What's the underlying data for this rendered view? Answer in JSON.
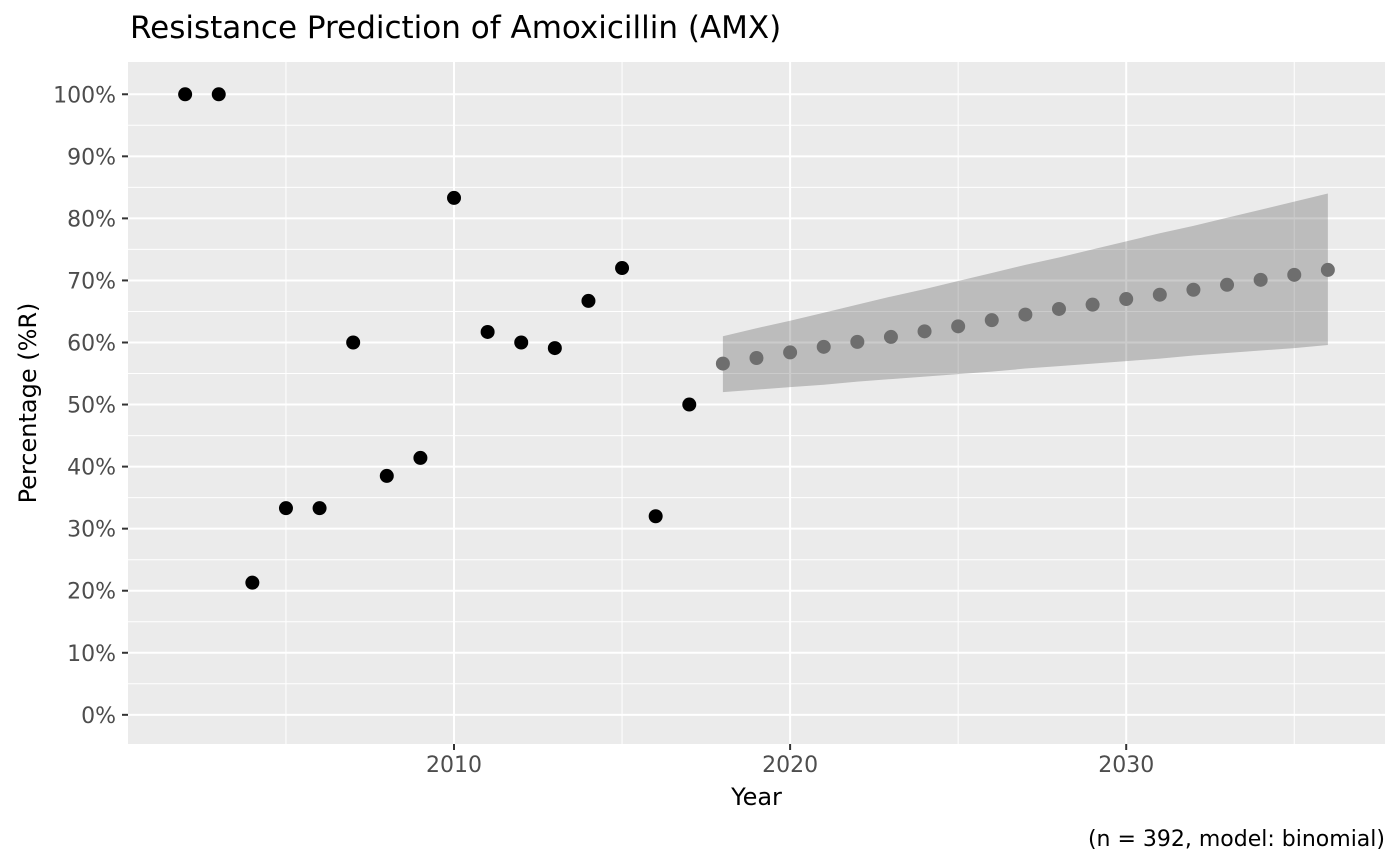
{
  "figure": {
    "title": "Resistance Prediction of Amoxicillin (AMX)",
    "caption": "(n = 392, model: binomial)"
  },
  "colors": {
    "background": "#FFFFFF",
    "panel_background": "#EBEBEB",
    "grid_major": "#FFFFFF",
    "grid_minor": "#FFFFFF",
    "observed_point": "#000000",
    "predicted_point": "#6E6E6E",
    "ribbon_fill": "rgba(47,47,47,0.25)",
    "tick_label_text": "#4D4D4D",
    "tick_mark": "#333333",
    "title_text": "#000000"
  },
  "chart_data": {
    "type": "scatter",
    "title": "Resistance Prediction of Amoxicillin (AMX)",
    "xlabel": "Year",
    "ylabel": "Percentage (%R)",
    "caption": "(n = 392, model: binomial)",
    "xlim": [
      2000.3,
      2037.7
    ],
    "ylim": [
      -4.7,
      105.2
    ],
    "x_major_ticks": [
      2010,
      2020,
      2030
    ],
    "x_minor_ticks": [
      2005,
      2015,
      2025,
      2035
    ],
    "y_major_ticks": [
      0,
      10,
      20,
      30,
      40,
      50,
      60,
      70,
      80,
      90,
      100
    ],
    "y_minor_ticks": [
      5,
      15,
      25,
      35,
      45,
      55,
      65,
      75,
      85,
      95
    ],
    "y_tick_suffix": "%",
    "grid": {
      "major": true,
      "minor": true
    },
    "legend": "none",
    "series": [
      {
        "name": "observed",
        "x": [
          2002,
          2003,
          2004,
          2005,
          2006,
          2007,
          2008,
          2009,
          2010,
          2011,
          2012,
          2013,
          2014,
          2015,
          2016,
          2017
        ],
        "y": [
          100,
          100,
          21.3,
          33.3,
          33.3,
          60.0,
          38.5,
          41.4,
          83.3,
          61.7,
          60.0,
          59.1,
          66.7,
          72.0,
          32.0,
          50.0
        ]
      },
      {
        "name": "predicted",
        "x": [
          2018,
          2019,
          2020,
          2021,
          2022,
          2023,
          2024,
          2025,
          2026,
          2027,
          2028,
          2029,
          2030,
          2031,
          2032,
          2033,
          2034,
          2035,
          2036
        ],
        "y": [
          56.6,
          57.5,
          58.4,
          59.3,
          60.1,
          60.9,
          61.8,
          62.6,
          63.6,
          64.5,
          65.4,
          66.1,
          67.0,
          67.7,
          68.5,
          69.3,
          70.1,
          70.9,
          71.7
        ]
      }
    ],
    "ribbon": {
      "name": "confidence-interval",
      "x": [
        2018,
        2019,
        2020,
        2021,
        2022,
        2023,
        2024,
        2025,
        2026,
        2027,
        2028,
        2029,
        2030,
        2031,
        2032,
        2033,
        2034,
        2035,
        2036
      ],
      "upper": [
        61.0,
        62.3,
        63.5,
        64.8,
        66.1,
        67.4,
        68.6,
        69.9,
        71.2,
        72.5,
        73.7,
        75.0,
        76.3,
        77.6,
        78.8,
        80.1,
        81.4,
        82.7,
        84.0
      ],
      "lower": [
        52.0,
        52.4,
        52.8,
        53.2,
        53.7,
        54.1,
        54.5,
        54.9,
        55.3,
        55.8,
        56.2,
        56.6,
        57.0,
        57.4,
        57.9,
        58.3,
        58.7,
        59.1,
        59.6
      ]
    }
  }
}
